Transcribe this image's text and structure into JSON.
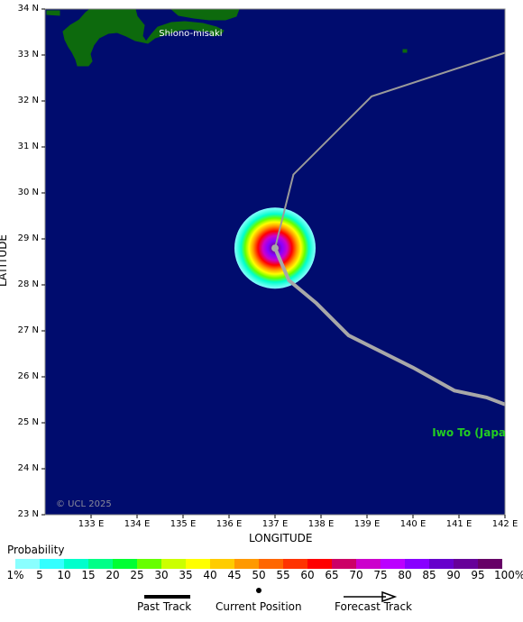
{
  "map": {
    "lon_range": [
      132,
      142
    ],
    "lat_range": [
      23,
      34
    ],
    "lat_ticks": [
      "34 N",
      "33 N",
      "32 N",
      "31 N",
      "30 N",
      "29 N",
      "28 N",
      "27 N",
      "26 N",
      "25 N",
      "24 N",
      "23 N"
    ],
    "lon_ticks": [
      "133 E",
      "134 E",
      "135 E",
      "136 E",
      "137 E",
      "138 E",
      "139 E",
      "140 E",
      "141 E",
      "142 E"
    ],
    "xlabel": "LONGITUDE",
    "ylabel": "LATITUDE",
    "ocean_color": "#000c6e",
    "land_color": "#0d6a0d",
    "place_labels": [
      {
        "text": "Shiono-misaki",
        "lon": 135.75,
        "lat": 33.45,
        "color": "#ffffff"
      },
      {
        "text": "Iwo To (Japa",
        "lon": 141.3,
        "lat": 24.75,
        "color": "#22cc22"
      }
    ],
    "copyright": "© UCL 2025",
    "current_position": {
      "lon": 137.0,
      "lat": 28.8
    },
    "track": [
      {
        "lon": 137.0,
        "lat": 28.8
      },
      {
        "lon": 137.3,
        "lat": 28.1
      },
      {
        "lon": 137.9,
        "lat": 27.6
      },
      {
        "lon": 138.6,
        "lat": 26.9
      },
      {
        "lon": 140.0,
        "lat": 26.2
      },
      {
        "lon": 140.9,
        "lat": 25.7
      },
      {
        "lon": 141.6,
        "lat": 25.55
      },
      {
        "lon": 142.0,
        "lat": 25.4
      }
    ],
    "forecast_track": [
      {
        "lon": 137.0,
        "lat": 28.8
      },
      {
        "lon": 137.4,
        "lat": 30.4
      },
      {
        "lon": 139.1,
        "lat": 32.1
      },
      {
        "lon": 142.0,
        "lat": 33.05
      }
    ]
  },
  "legend": {
    "title": "Probability",
    "colors": [
      "#8affff",
      "#33ffff",
      "#00ffcc",
      "#00ff88",
      "#00ff33",
      "#66ff00",
      "#ccff00",
      "#ffff00",
      "#ffcc00",
      "#ff9900",
      "#ff6600",
      "#ff3300",
      "#ff0000",
      "#cc0066",
      "#cc00cc",
      "#bb00ff",
      "#8800ff",
      "#6600cc",
      "#660099",
      "#660066"
    ],
    "labels": [
      "1%",
      "5",
      "10",
      "15",
      "20",
      "25",
      "30",
      "35",
      "40",
      "45",
      "50",
      "55",
      "60",
      "65",
      "70",
      "75",
      "80",
      "85",
      "90",
      "95",
      "100%"
    ]
  },
  "key": {
    "past_track": "Past Track",
    "current_position": "Current Position",
    "forecast_track": "Forecast Track"
  }
}
